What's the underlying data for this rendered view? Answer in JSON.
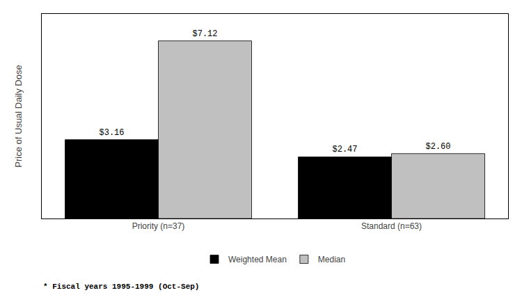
{
  "chart_data": {
    "type": "bar",
    "categories": [
      "Priority (n=37)",
      "Standard (n=63)"
    ],
    "series": [
      {
        "name": "Weighted Mean",
        "color": "#000000",
        "values": [
          3.16,
          2.47
        ],
        "value_labels": [
          "$3.16",
          "$2.47"
        ]
      },
      {
        "name": "Median",
        "color": "#c0c0c0",
        "values": [
          7.12,
          2.6
        ],
        "value_labels": [
          "$7.12",
          "$2.60"
        ]
      }
    ],
    "ylabel": "Price of Usual Daily Dose",
    "ylim": [
      0,
      8.2
    ],
    "data_labels": true,
    "tick_labels": "x",
    "grid": false,
    "legend": "bottom",
    "annotations": [
      "* Fiscal years 1995-1999 (Oct-Sep)"
    ]
  }
}
